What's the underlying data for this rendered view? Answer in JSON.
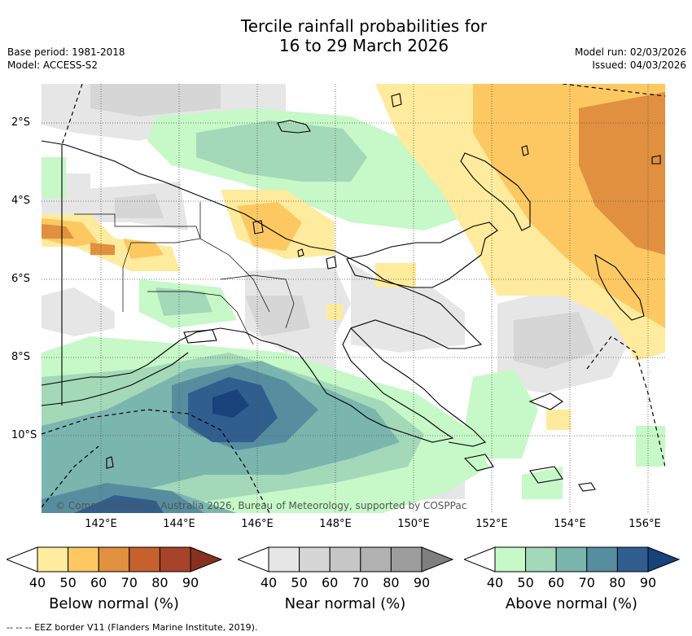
{
  "header": {
    "title_line1": "Tercile rainfall probabilities for",
    "title_line2": "16 to 29 March 2026",
    "base_period": "Base period: 1981-2018",
    "model": "Model: ACCESS-S2",
    "model_run": "Model run: 02/03/2026",
    "issued": "Issued: 04/03/2026"
  },
  "map": {
    "lat_labels": [
      "2°S",
      "4°S",
      "6°S",
      "8°S",
      "10°S"
    ],
    "lon_labels": [
      "142°E",
      "144°E",
      "146°E",
      "148°E",
      "150°E",
      "152°E",
      "154°E",
      "156°E"
    ],
    "copyright": "© Commonwealth of Australia 2026, Bureau of Meteorology, supported by COSPPac",
    "colors": {
      "land_outline": "#000000",
      "ocean": "#ffffff",
      "grid": "#555555"
    }
  },
  "legends": [
    {
      "title": "Below normal (%)",
      "ticks": [
        "40",
        "50",
        "60",
        "70",
        "80",
        "90"
      ],
      "colors": [
        "#ffffff",
        "#feeb9d",
        "#fdc862",
        "#e0903e",
        "#c6612e",
        "#a7432a",
        "#86311f"
      ]
    },
    {
      "title": "Near normal (%)",
      "ticks": [
        "40",
        "50",
        "60",
        "70",
        "80",
        "90"
      ],
      "colors": [
        "#ffffff",
        "#e6e6e6",
        "#d6d6d6",
        "#c6c6c6",
        "#b1b1b1",
        "#9d9d9d",
        "#7f7f7f"
      ]
    },
    {
      "title": "Above normal (%)",
      "ticks": [
        "40",
        "50",
        "60",
        "70",
        "80",
        "90"
      ],
      "colors": [
        "#ffffff",
        "#c6f8c8",
        "#a3d8b9",
        "#7ab5ae",
        "#568e9f",
        "#2f5e8f",
        "#17427a"
      ]
    }
  ],
  "footnote": "--  --  -- EEZ border V11 (Flanders Marine Institute, 2019)."
}
